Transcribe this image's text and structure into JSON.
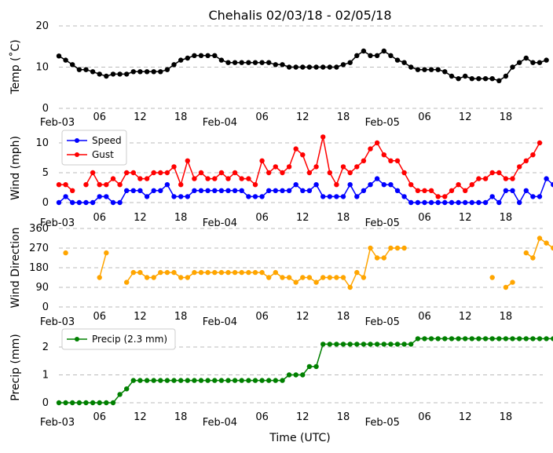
{
  "title": "Chehalis 02/03/18 - 02/05/18",
  "xlabel": "Time (UTC)",
  "x_ticks": [
    "Feb-03",
    "06",
    "12",
    "18",
    "Feb-04",
    "06",
    "12",
    "18",
    "Feb-05",
    "06",
    "12",
    "18"
  ],
  "colors": {
    "temp": "#000000",
    "speed": "#0000ff",
    "gust": "#ff0000",
    "direction": "#ffa500",
    "precip": "#008000",
    "grid": "#bbbbbb"
  },
  "chart_data": [
    {
      "type": "line",
      "title": "Chehalis 02/03/18 - 02/05/18",
      "xlabel": "",
      "ylabel": "Temp ($^\\circ$C)",
      "ylabel_display": "Temp (˚C)",
      "ylim": [
        0,
        20
      ],
      "y_ticks": [
        "0",
        "10",
        "20"
      ],
      "x_hours_per_point": 1,
      "grid": true,
      "series": [
        {
          "name": "",
          "values": [
            12.7,
            11.7,
            10.6,
            9.4,
            9.4,
            8.9,
            8.3,
            7.8,
            8.3,
            8.3,
            8.3,
            8.9,
            8.9,
            8.9,
            8.9,
            8.9,
            9.4,
            10.6,
            11.7,
            12.2,
            12.8,
            12.8,
            12.8,
            12.8,
            11.7,
            11.1,
            11.1,
            11.1,
            11.1,
            11.1,
            11.1,
            11.1,
            10.6,
            10.6,
            10.0,
            10.0,
            10.0,
            10.0,
            10.0,
            10.0,
            10.0,
            10.0,
            10.6,
            11.1,
            12.8,
            13.9,
            12.8,
            12.8,
            13.9,
            12.8,
            11.7,
            11.1,
            10.0,
            9.4,
            9.4,
            9.4,
            9.4,
            8.9,
            7.8,
            7.2,
            7.8,
            7.2,
            7.2,
            7.2,
            7.2,
            6.7,
            7.8,
            10.0,
            11.1,
            12.2,
            11.1,
            11.1,
            11.7
          ]
        }
      ]
    },
    {
      "type": "line",
      "ylabel": "Wind (mph)",
      "ylim": [
        0,
        11
      ],
      "y_ticks": [
        "0",
        "5",
        "10"
      ],
      "legend": "top-left",
      "grid": true,
      "series": [
        {
          "name": "Speed",
          "values": [
            0,
            1,
            0,
            0,
            0,
            0,
            1,
            1,
            0,
            0,
            2,
            2,
            2,
            1,
            2,
            2,
            3,
            1,
            1,
            1,
            2,
            2,
            2,
            2,
            2,
            2,
            2,
            2,
            1,
            1,
            1,
            2,
            2,
            2,
            2,
            3,
            2,
            2,
            3,
            1,
            1,
            1,
            1,
            3,
            1,
            2,
            3,
            4,
            3,
            3,
            2,
            1,
            0,
            0,
            0,
            0,
            0,
            0,
            0,
            0,
            0,
            0,
            0,
            0,
            1,
            0,
            2,
            2,
            0,
            2,
            1,
            1,
            4,
            3
          ]
        },
        {
          "name": "Gust",
          "values": [
            3,
            3,
            2,
            null,
            3,
            5,
            3,
            3,
            4,
            3,
            5,
            5,
            4,
            4,
            5,
            5,
            5,
            6,
            3,
            7,
            4,
            5,
            4,
            4,
            5,
            4,
            5,
            4,
            4,
            3,
            7,
            5,
            6,
            5,
            6,
            9,
            8,
            5,
            6,
            11,
            5,
            3,
            6,
            5,
            6,
            7,
            9,
            10,
            8,
            7,
            7,
            5,
            3,
            2,
            2,
            2,
            1,
            1,
            2,
            3,
            2,
            3,
            4,
            4,
            5,
            5,
            4,
            4,
            6,
            7,
            8,
            10
          ]
        }
      ]
    },
    {
      "type": "scatter",
      "ylabel": "Wind Direction",
      "ylim": [
        0,
        360
      ],
      "y_ticks": [
        "0",
        "90",
        "180",
        "270",
        "360"
      ],
      "grid": true,
      "series": [
        {
          "name": "",
          "values": [
            null,
            248,
            null,
            null,
            null,
            null,
            135,
            248,
            null,
            null,
            113,
            158,
            158,
            135,
            135,
            158,
            158,
            158,
            135,
            135,
            158,
            158,
            158,
            158,
            158,
            158,
            158,
            158,
            158,
            158,
            158,
            135,
            158,
            135,
            135,
            113,
            135,
            135,
            113,
            135,
            135,
            135,
            135,
            90,
            158,
            135,
            270,
            225,
            225,
            270,
            270,
            270,
            null,
            null,
            null,
            null,
            null,
            null,
            null,
            null,
            null,
            null,
            null,
            null,
            135,
            null,
            90,
            113,
            null,
            248,
            225,
            315,
            293,
            270
          ]
        }
      ]
    },
    {
      "type": "line",
      "ylabel": "Precip (mm)",
      "ylim": [
        -0.15,
        2.6
      ],
      "y_ticks": [
        "0",
        "1",
        "2"
      ],
      "legend": "top-left",
      "grid": true,
      "series": [
        {
          "name": "Precip (2.3 mm)",
          "values": [
            0,
            0,
            0,
            0,
            0,
            0,
            0,
            0,
            0,
            0.3,
            0.5,
            0.8,
            0.8,
            0.8,
            0.8,
            0.8,
            0.8,
            0.8,
            0.8,
            0.8,
            0.8,
            0.8,
            0.8,
            0.8,
            0.8,
            0.8,
            0.8,
            0.8,
            0.8,
            0.8,
            0.8,
            0.8,
            0.8,
            0.8,
            1.0,
            1.0,
            1.0,
            1.3,
            1.3,
            2.1,
            2.1,
            2.1,
            2.1,
            2.1,
            2.1,
            2.1,
            2.1,
            2.1,
            2.1,
            2.1,
            2.1,
            2.1,
            2.1,
            2.3,
            2.3,
            2.3,
            2.3,
            2.3,
            2.3,
            2.3,
            2.3,
            2.3,
            2.3,
            2.3,
            2.3,
            2.3,
            2.3,
            2.3,
            2.3,
            2.3,
            2.3,
            2.3,
            2.3,
            2.3
          ]
        }
      ]
    }
  ]
}
